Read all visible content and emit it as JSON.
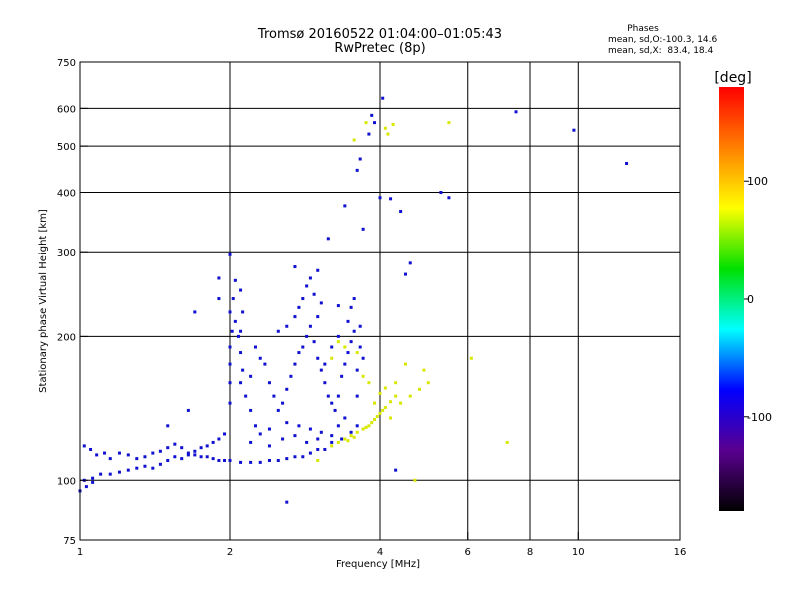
{
  "chart_data": {
    "type": "scatter",
    "title": "Tromsø 20160522 01:04:00–01:05:43",
    "subtitle": "RwPretec (8p)",
    "xlabel": "Frequency [MHz]",
    "ylabel": "Stationary phase Virtual Height [km]",
    "x_scale": "log",
    "y_scale": "log",
    "xlim": [
      1,
      16
    ],
    "ylim": [
      75,
      750
    ],
    "x_ticks": [
      1,
      2,
      4,
      6,
      8,
      10,
      16
    ],
    "x_tick_labels": [
      "1",
      "2",
      "4",
      "6",
      "8",
      "10",
      "16"
    ],
    "y_ticks": [
      75,
      100,
      200,
      300,
      400,
      500,
      600,
      750
    ],
    "y_tick_labels": [
      "75",
      "100",
      "200",
      "300",
      "400",
      "500",
      "600",
      "750"
    ],
    "x_grid": [
      1,
      2,
      4,
      6,
      8,
      10
    ],
    "y_grid": [
      100,
      200,
      300,
      400,
      500,
      600
    ],
    "grid": true,
    "info": {
      "heading": "Phases",
      "line1": "mean, sd,O:-100.3, 14.6",
      "line2": "mean, sd,X:  83.4, 18.4"
    },
    "colorbar": {
      "label": "[deg]",
      "min": -180,
      "max": 180,
      "ticks": [
        100,
        0,
        -100
      ],
      "tick_labels": [
        "100",
        "0",
        "-100"
      ],
      "colors": [
        "#ff0000",
        "#ff8000",
        "#ffff00",
        "#00e000",
        "#00ffff",
        "#0000ff",
        "#5a0090",
        "#000000"
      ]
    },
    "series": [
      {
        "name": "O",
        "color": "#1010d0",
        "points": [
          [
            1.02,
            118
          ],
          [
            1.05,
            116
          ],
          [
            1.08,
            113
          ],
          [
            1.12,
            114
          ],
          [
            1.15,
            111
          ],
          [
            1.2,
            114
          ],
          [
            1.25,
            113
          ],
          [
            1.3,
            111
          ],
          [
            1.35,
            112
          ],
          [
            1.4,
            114
          ],
          [
            1.45,
            115
          ],
          [
            1.5,
            117
          ],
          [
            1.55,
            119
          ],
          [
            1.6,
            117
          ],
          [
            1.65,
            114
          ],
          [
            1.7,
            113
          ],
          [
            1.75,
            112
          ],
          [
            1.8,
            112
          ],
          [
            1.85,
            111
          ],
          [
            1.9,
            110
          ],
          [
            1.95,
            110
          ],
          [
            2.0,
            110
          ],
          [
            2.1,
            109
          ],
          [
            2.2,
            109
          ],
          [
            2.3,
            109
          ],
          [
            2.4,
            110
          ],
          [
            2.5,
            110
          ],
          [
            2.6,
            111
          ],
          [
            2.7,
            112
          ],
          [
            2.8,
            112
          ],
          [
            2.9,
            114
          ],
          [
            3.0,
            116
          ],
          [
            3.1,
            116
          ],
          [
            3.2,
            120
          ],
          [
            1.02,
            100
          ],
          [
            1.06,
            101
          ],
          [
            1.1,
            103
          ],
          [
            1.15,
            103
          ],
          [
            1.2,
            104
          ],
          [
            1.25,
            105
          ],
          [
            1.3,
            106
          ],
          [
            1.35,
            107
          ],
          [
            1.4,
            106
          ],
          [
            1.45,
            108
          ],
          [
            1.5,
            110
          ],
          [
            1.55,
            112
          ],
          [
            1.6,
            111
          ],
          [
            1.65,
            113
          ],
          [
            1.7,
            115
          ],
          [
            1.75,
            117
          ],
          [
            1.8,
            118
          ],
          [
            1.85,
            120
          ],
          [
            1.9,
            122
          ],
          [
            1.95,
            125
          ],
          [
            1.0,
            95
          ],
          [
            1.03,
            97
          ],
          [
            1.06,
            99
          ],
          [
            2.0,
            145
          ],
          [
            2.0,
            160
          ],
          [
            2.0,
            175
          ],
          [
            2.0,
            190
          ],
          [
            2.02,
            205
          ],
          [
            2.05,
            215
          ],
          [
            2.0,
            225
          ],
          [
            2.03,
            240
          ],
          [
            2.1,
            250
          ],
          [
            2.05,
            262
          ],
          [
            1.9,
            265
          ],
          [
            2.08,
            200
          ],
          [
            2.1,
            185
          ],
          [
            2.12,
            170
          ],
          [
            2.1,
            160
          ],
          [
            2.15,
            150
          ],
          [
            2.2,
            140
          ],
          [
            2.25,
            130
          ],
          [
            2.3,
            125
          ],
          [
            2.2,
            165
          ],
          [
            2.3,
            180
          ],
          [
            2.35,
            175
          ],
          [
            2.4,
            160
          ],
          [
            2.45,
            150
          ],
          [
            2.5,
            140
          ],
          [
            2.55,
            145
          ],
          [
            2.6,
            155
          ],
          [
            2.65,
            165
          ],
          [
            2.7,
            175
          ],
          [
            2.75,
            185
          ],
          [
            2.8,
            190
          ],
          [
            2.85,
            200
          ],
          [
            2.9,
            210
          ],
          [
            2.95,
            195
          ],
          [
            3.0,
            180
          ],
          [
            3.05,
            170
          ],
          [
            2.8,
            240
          ],
          [
            2.85,
            255
          ],
          [
            2.9,
            265
          ],
          [
            2.95,
            245
          ],
          [
            2.75,
            230
          ],
          [
            2.7,
            220
          ],
          [
            3.1,
            160
          ],
          [
            3.15,
            150
          ],
          [
            3.2,
            145
          ],
          [
            3.25,
            140
          ],
          [
            3.3,
            150
          ],
          [
            3.35,
            165
          ],
          [
            3.4,
            175
          ],
          [
            3.45,
            185
          ],
          [
            3.5,
            195
          ],
          [
            3.55,
            205
          ],
          [
            3.45,
            215
          ],
          [
            3.5,
            230
          ],
          [
            3.55,
            240
          ],
          [
            3.3,
            200
          ],
          [
            3.2,
            190
          ],
          [
            3.1,
            175
          ],
          [
            3.0,
            220
          ],
          [
            3.05,
            235
          ],
          [
            3.3,
            232
          ],
          [
            3.6,
            150
          ],
          [
            3.6,
            170
          ],
          [
            3.65,
            190
          ],
          [
            3.65,
            210
          ],
          [
            3.7,
            180
          ],
          [
            2.4,
            128
          ],
          [
            2.6,
            132
          ],
          [
            2.75,
            130
          ],
          [
            2.9,
            128
          ],
          [
            3.05,
            126
          ],
          [
            3.2,
            124
          ],
          [
            3.35,
            122
          ],
          [
            3.5,
            126
          ],
          [
            3.6,
            130
          ],
          [
            3.4,
            135
          ],
          [
            3.3,
            130
          ],
          [
            2.2,
            120
          ],
          [
            2.4,
            118
          ],
          [
            2.55,
            122
          ],
          [
            2.7,
            124
          ],
          [
            2.85,
            120
          ],
          [
            3.0,
            122
          ],
          [
            2.1,
            205
          ],
          [
            2.12,
            225
          ],
          [
            2.25,
            190
          ],
          [
            2.5,
            205
          ],
          [
            2.6,
            210
          ],
          [
            1.65,
            140
          ],
          [
            1.5,
            130
          ],
          [
            1.7,
            225
          ],
          [
            1.9,
            240
          ],
          [
            2.7,
            280
          ],
          [
            3.0,
            275
          ],
          [
            3.15,
            320
          ],
          [
            3.4,
            375
          ],
          [
            3.6,
            445
          ],
          [
            3.65,
            470
          ],
          [
            3.8,
            530
          ],
          [
            3.9,
            560
          ],
          [
            3.85,
            580
          ],
          [
            4.0,
            390
          ],
          [
            4.2,
            388
          ],
          [
            4.4,
            365
          ],
          [
            4.5,
            270
          ],
          [
            5.3,
            400
          ],
          [
            5.5,
            390
          ],
          [
            7.5,
            590
          ],
          [
            9.8,
            540
          ],
          [
            12.5,
            460
          ],
          [
            4.05,
            630
          ],
          [
            3.7,
            335
          ],
          [
            4.3,
            105
          ],
          [
            2.6,
            90
          ],
          [
            4.6,
            285
          ],
          [
            2.0,
            297
          ]
        ]
      },
      {
        "name": "X",
        "color": "#d8e800",
        "points": [
          [
            3.2,
            118
          ],
          [
            3.3,
            120
          ],
          [
            3.4,
            122
          ],
          [
            3.5,
            124
          ],
          [
            3.6,
            126
          ],
          [
            3.7,
            128
          ],
          [
            3.8,
            130
          ],
          [
            3.9,
            134
          ],
          [
            4.0,
            138
          ],
          [
            4.1,
            142
          ],
          [
            4.2,
            146
          ],
          [
            4.3,
            150
          ],
          [
            3.45,
            121
          ],
          [
            3.55,
            123
          ],
          [
            3.75,
            129
          ],
          [
            3.85,
            132
          ],
          [
            3.95,
            136
          ],
          [
            4.05,
            140
          ],
          [
            3.9,
            145
          ],
          [
            4.0,
            152
          ],
          [
            4.1,
            156
          ],
          [
            3.8,
            160
          ],
          [
            3.7,
            165
          ],
          [
            4.2,
            135
          ],
          [
            4.4,
            145
          ],
          [
            4.6,
            150
          ],
          [
            4.8,
            155
          ],
          [
            5.0,
            160
          ],
          [
            4.9,
            170
          ],
          [
            4.5,
            175
          ],
          [
            4.3,
            160
          ],
          [
            3.6,
            185
          ],
          [
            3.4,
            190
          ],
          [
            3.3,
            195
          ],
          [
            3.2,
            180
          ],
          [
            3.55,
            515
          ],
          [
            3.75,
            560
          ],
          [
            4.1,
            545
          ],
          [
            4.15,
            530
          ],
          [
            4.25,
            555
          ],
          [
            5.5,
            560
          ],
          [
            3.0,
            110
          ],
          [
            4.7,
            100
          ],
          [
            6.1,
            180
          ],
          [
            7.2,
            120
          ]
        ]
      }
    ]
  }
}
